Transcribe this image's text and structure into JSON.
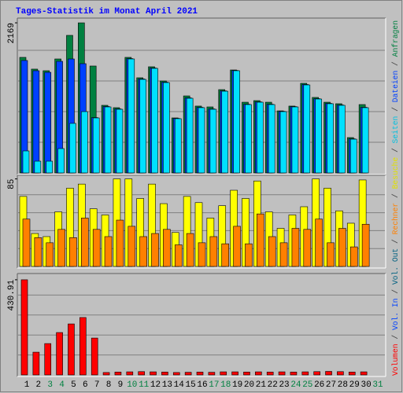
{
  "chart_data": [
    {
      "type": "bar",
      "title": "Tages-Statistik im Monat April 2021",
      "ylim": [
        0,
        2215
      ],
      "yticks": [
        2169
      ],
      "series": [
        {
          "name": "Anfragen",
          "color": "#008040",
          "values": [
            1670,
            1500,
            1477,
            1647,
            1988,
            2169,
            1545,
            977,
            943,
            1670,
            1375,
            1534,
            1329,
            795,
            1113,
            966,
            954,
            1204,
            1488,
            1022,
            1045,
            1022,
            897,
            966,
            1295,
            1091,
            1022,
            1000,
            511,
            988,
            0
          ]
        },
        {
          "name": "Dateien",
          "color": "#0040ff",
          "values": [
            1625,
            1477,
            1454,
            1613,
            1647,
            1579,
            800,
            960,
            925,
            1652,
            1358,
            1516,
            1312,
            788,
            1085,
            948,
            925,
            1186,
            1481,
            993,
            1027,
            993,
            890,
            958,
            1278,
            1073,
            1005,
            982,
            493,
            948,
            0
          ]
        },
        {
          "name": "Seiten",
          "color": "#00e0ff",
          "values": [
            318,
            170,
            170,
            352,
            716,
            886,
            795,
            954,
            920,
            1647,
            1352,
            1511,
            1306,
            784,
            1079,
            943,
            920,
            1181,
            1477,
            988,
            1022,
            988,
            886,
            954,
            1272,
            1068,
            1000,
            977,
            488,
            943,
            0
          ]
        }
      ]
    },
    {
      "type": "bar",
      "ylim": [
        0,
        87
      ],
      "yticks": [
        85
      ],
      "series": [
        {
          "name": "Besuche",
          "color": "#ffff00",
          "values": [
            68,
            32,
            29,
            53,
            76,
            80,
            56,
            50,
            85,
            85,
            66,
            80,
            61,
            33,
            68,
            62,
            47,
            59,
            74,
            66,
            83,
            53,
            37,
            50,
            58,
            85,
            76,
            54,
            42,
            84,
            0
          ]
        },
        {
          "name": "Rechner",
          "color": "#ff8000",
          "values": [
            46,
            28,
            23,
            36,
            28,
            47,
            36,
            29,
            45,
            39,
            29,
            32,
            36,
            21,
            32,
            23,
            29,
            22,
            39,
            22,
            51,
            29,
            23,
            37,
            36,
            46,
            23,
            37,
            19,
            41,
            0
          ]
        }
      ]
    },
    {
      "type": "bar",
      "ylim": [
        0,
        452
      ],
      "yticks": [
        430.91
      ],
      "categories": [
        "1",
        "2",
        "3",
        "4",
        "5",
        "6",
        "7",
        "8",
        "9",
        "10",
        "11",
        "12",
        "13",
        "14",
        "15",
        "16",
        "17",
        "18",
        "19",
        "20",
        "21",
        "22",
        "23",
        "24",
        "25",
        "26",
        "27",
        "28",
        "29",
        "30",
        "31"
      ],
      "category_colors": [
        "#000000",
        "#000000",
        "#008040",
        "#008040",
        "#000000",
        "#000000",
        "#000000",
        "#000000",
        "#000000",
        "#008040",
        "#008040",
        "#000000",
        "#000000",
        "#000000",
        "#000000",
        "#000000",
        "#008040",
        "#008040",
        "#000000",
        "#000000",
        "#000000",
        "#000000",
        "#000000",
        "#008040",
        "#008040",
        "#000000",
        "#000000",
        "#000000",
        "#000000",
        "#000000",
        "#008040"
      ],
      "series": [
        {
          "name": "Volumen",
          "color": "#ff0000",
          "values": [
            430.91,
            103,
            142,
            192,
            231,
            260,
            167,
            11,
            13,
            14,
            15,
            14,
            13,
            11,
            12,
            13,
            12,
            14,
            14,
            13,
            14,
            13,
            14,
            13,
            14,
            15,
            16,
            15,
            13,
            14,
            0
          ]
        }
      ],
      "legend": [
        {
          "name": "Volumen",
          "color": "#ff0000"
        },
        {
          "name": "Vol. In",
          "color": "#0040ff"
        },
        {
          "name": "Vol. Out",
          "color": "#006080"
        },
        {
          "name": "Rechner",
          "color": "#ff8000"
        },
        {
          "name": "Besuche",
          "color": "#e0e000"
        },
        {
          "name": "Seiten",
          "color": "#00c0e0"
        },
        {
          "name": "Dateien",
          "color": "#0040ff"
        },
        {
          "name": "Anfragen",
          "color": "#008040"
        }
      ],
      "legend_separator": "/"
    }
  ]
}
